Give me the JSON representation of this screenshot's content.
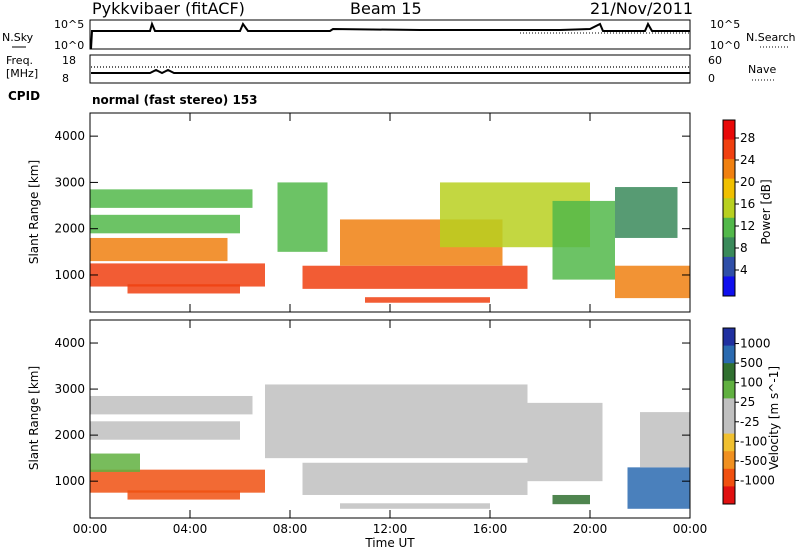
{
  "header": {
    "station": "Pykkvibaer (fitACF)",
    "beam": "Beam 15",
    "date": "21/Nov/2011"
  },
  "sky_panel": {
    "left_label": "N.Sky",
    "right_label": "N.Search",
    "left_ticks": [
      "10^5",
      "10^0"
    ],
    "right_ticks": [
      "10^5",
      "10^0"
    ]
  },
  "freq_panel": {
    "left_label_1": "Freq.",
    "left_label_2": "[MHz]",
    "right_label": "Nave",
    "left_ticks": [
      "18",
      "8"
    ],
    "right_ticks": [
      "60",
      "0"
    ]
  },
  "cpid": {
    "label": "CPID",
    "value": "normal (fast stereo) 153"
  },
  "colors": {
    "power_scale": [
      "#1010ee",
      "#2f4fa8",
      "#3a8a5a",
      "#52b84a",
      "#b8d020",
      "#f0c000",
      "#f08010",
      "#f04010",
      "#e80808"
    ],
    "velocity_scale": [
      "#e01010",
      "#f05010",
      "#f09020",
      "#f0c030",
      "#c0c0c0",
      "#c0c0c0",
      "#60b040",
      "#307030",
      "#2a6ab0",
      "#2030a0"
    ],
    "ground_scatter": "#c0c0c0"
  },
  "chart_data": [
    {
      "type": "heatmap",
      "name": "power",
      "ylabel": "Slant Range [km]",
      "y_ticks": [
        "4000",
        "3000",
        "2000",
        "1000"
      ],
      "ylim": [
        200,
        4500
      ],
      "colorbar_label": "Power [dB]",
      "colorbar_ticks": [
        "28",
        "24",
        "20",
        "16",
        "12",
        "8",
        "4"
      ],
      "colorbar_range": [
        0,
        32
      ],
      "bands": [
        {
          "t0": 0.0,
          "t1": 7.0,
          "r0": 750,
          "r1": 1250,
          "level": 28
        },
        {
          "t0": 1.5,
          "t1": 6.0,
          "r0": 600,
          "r1": 800,
          "level": 26
        },
        {
          "t0": 0.0,
          "t1": 5.5,
          "r0": 1300,
          "r1": 1800,
          "level": 24
        },
        {
          "t0": 0.0,
          "t1": 6.0,
          "r0": 1900,
          "r1": 2300,
          "level": 14
        },
        {
          "t0": 0.0,
          "t1": 6.5,
          "r0": 2450,
          "r1": 2850,
          "level": 14
        },
        {
          "t0": 7.5,
          "t1": 9.5,
          "r0": 1500,
          "r1": 3000,
          "level": 12
        },
        {
          "t0": 8.5,
          "t1": 17.5,
          "r0": 700,
          "r1": 1200,
          "level": 28
        },
        {
          "t0": 10.0,
          "t1": 16.5,
          "r0": 1200,
          "r1": 2200,
          "level": 22
        },
        {
          "t0": 11.0,
          "t1": 16.0,
          "r0": 400,
          "r1": 520,
          "level": 28
        },
        {
          "t0": 14.0,
          "t1": 20.0,
          "r0": 1600,
          "r1": 3000,
          "level": 16
        },
        {
          "t0": 18.5,
          "t1": 21.0,
          "r0": 900,
          "r1": 2600,
          "level": 12
        },
        {
          "t0": 21.0,
          "t1": 24.0,
          "r0": 500,
          "r1": 1200,
          "level": 24
        },
        {
          "t0": 21.0,
          "t1": 23.5,
          "r0": 1800,
          "r1": 2900,
          "level": 8
        }
      ]
    },
    {
      "type": "heatmap",
      "name": "velocity",
      "ylabel": "Slant Range [km]",
      "y_ticks": [
        "4000",
        "3000",
        "2000",
        "1000"
      ],
      "ylim": [
        200,
        4500
      ],
      "colorbar_label": "Velocity [m s^-1]",
      "colorbar_ticks": [
        "1000",
        "500",
        "100",
        "25",
        "-25",
        "-100",
        "-500",
        "-1000"
      ],
      "x_ticks": [
        "00:00",
        "04:00",
        "08:00",
        "12:00",
        "16:00",
        "20:00",
        "00:00"
      ],
      "xlabel": "Time UT",
      "xlim": [
        0,
        24
      ],
      "bands": [
        {
          "t0": 0.0,
          "t1": 7.0,
          "r0": 750,
          "r1": 1250,
          "value": -150
        },
        {
          "t0": 0.0,
          "t1": 2.0,
          "r0": 1200,
          "r1": 1600,
          "value": 80
        },
        {
          "t0": 1.5,
          "t1": 6.0,
          "r0": 600,
          "r1": 800,
          "value": -120
        },
        {
          "t0": 0.0,
          "t1": 6.0,
          "r0": 1900,
          "r1": 2300,
          "value": 0
        },
        {
          "t0": 0.0,
          "t1": 6.5,
          "r0": 2450,
          "r1": 2850,
          "value": 0
        },
        {
          "t0": 7.0,
          "t1": 17.5,
          "r0": 1500,
          "r1": 3100,
          "value": 0
        },
        {
          "t0": 8.5,
          "t1": 17.5,
          "r0": 700,
          "r1": 1400,
          "value": 0
        },
        {
          "t0": 10.0,
          "t1": 16.0,
          "r0": 400,
          "r1": 520,
          "value": 0
        },
        {
          "t0": 17.5,
          "t1": 20.5,
          "r0": 1000,
          "r1": 2700,
          "value": 0
        },
        {
          "t0": 18.5,
          "t1": 20.0,
          "r0": 500,
          "r1": 700,
          "value": 300
        },
        {
          "t0": 21.5,
          "t1": 24.0,
          "r0": 400,
          "r1": 1300,
          "value": 600
        },
        {
          "t0": 22.0,
          "t1": 24.0,
          "r0": 1300,
          "r1": 2500,
          "value": 0
        }
      ]
    }
  ]
}
